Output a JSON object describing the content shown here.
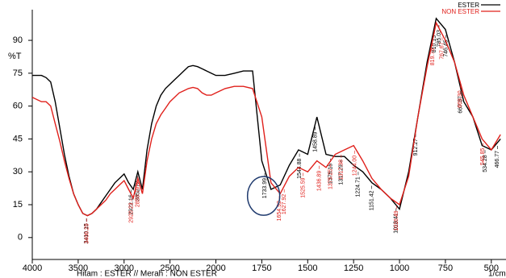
{
  "chart_data": {
    "type": "line",
    "y_label": "%T",
    "x_unit": "1/cm",
    "caption": "Hitam : ESTER // Merah : NON ESTER",
    "x_scale_break": 2000,
    "xlim": [
      4000,
      420
    ],
    "xticks": [
      4000,
      3500,
      3000,
      2500,
      2000,
      1750,
      1500,
      1250,
      1000,
      750,
      500
    ],
    "ylim": [
      -10,
      104
    ],
    "yticks": [
      0,
      15,
      30,
      45,
      60,
      75,
      90
    ],
    "legend": "top-right",
    "x": [
      4000,
      3950,
      3900,
      3850,
      3800,
      3750,
      3700,
      3650,
      3600,
      3550,
      3500,
      3450,
      3400,
      3350,
      3300,
      3250,
      3200,
      3150,
      3100,
      3050,
      3000,
      2950,
      2900,
      2850,
      2800,
      2750,
      2700,
      2650,
      2600,
      2550,
      2500,
      2450,
      2400,
      2350,
      2300,
      2250,
      2200,
      2150,
      2100,
      2050,
      2000,
      1950,
      1900,
      1850,
      1800,
      1750,
      1700,
      1650,
      1600,
      1550,
      1500,
      1450,
      1400,
      1350,
      1300,
      1250,
      1200,
      1150,
      1100,
      1050,
      1000,
      950,
      900,
      850,
      800,
      750,
      700,
      650,
      600,
      550,
      500,
      450
    ],
    "series": [
      {
        "name": "ESTER",
        "color": "#000000",
        "values": [
          74,
          74,
          74,
          73,
          71,
          62,
          50,
          38,
          28,
          20,
          15,
          11,
          10,
          11,
          13,
          16,
          19,
          22,
          25,
          27,
          29,
          25,
          22,
          30,
          22,
          40,
          52,
          60,
          65,
          68,
          70,
          72,
          74,
          76,
          78,
          78.5,
          78,
          77,
          76,
          75,
          74,
          74,
          75,
          76,
          76,
          35,
          22,
          24,
          33,
          40,
          38,
          55,
          38,
          37,
          37,
          33,
          30,
          25,
          22,
          18,
          13,
          30,
          55,
          80,
          100,
          95,
          80,
          62,
          55,
          42,
          40,
          45
        ],
        "peak_labels": [
          "3410.15",
          "2922.16",
          "2852.72",
          "1733.99",
          "1544.88",
          "1458.89",
          "1375.15",
          "1317.29",
          "1224.71",
          "1151.42",
          "1018.41",
          "912.27",
          "810.13",
          "785.03",
          "746.45",
          "667.37",
          "534.28",
          "466.77"
        ]
      },
      {
        "name": "NON ESTER",
        "color": "#e0201b",
        "values": [
          64,
          63,
          62,
          62,
          60,
          52,
          44,
          35,
          27,
          20,
          15,
          11,
          10,
          11,
          13,
          15,
          17,
          20,
          22,
          24,
          26,
          22,
          18,
          27,
          20,
          35,
          45,
          52,
          56,
          59,
          62,
          64,
          66,
          67,
          68,
          68.5,
          68,
          66,
          65,
          65,
          66,
          68,
          69,
          69,
          68,
          55,
          25,
          20,
          28,
          32,
          30,
          35,
          32,
          38,
          40,
          42,
          35,
          27,
          22,
          18,
          15,
          28,
          55,
          78,
          98,
          90,
          80,
          65,
          55,
          45,
          40,
          47
        ],
        "peak_labels": [
          "3406.29",
          "2920.23",
          "2850.79",
          "1654.92",
          "1627.92",
          "1525.59",
          "1436.89",
          "1375.25",
          "1317.38",
          "1244.00",
          "1016.49",
          "819.75",
          "767.67",
          "669.30",
          "545.85"
        ]
      }
    ]
  }
}
